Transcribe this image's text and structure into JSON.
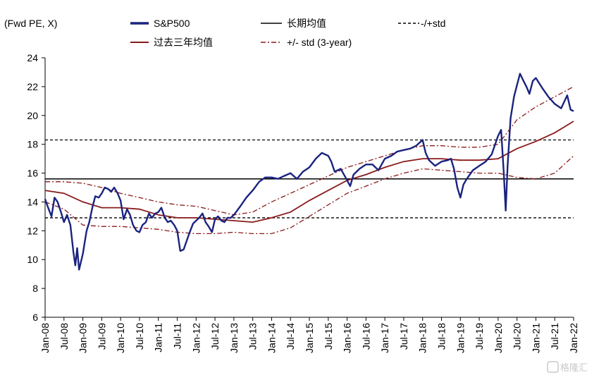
{
  "chart_data": {
    "type": "line",
    "ylabel": "(Fwd PE, X)",
    "ylim": [
      6,
      24
    ],
    "yticks": [
      6,
      8,
      10,
      12,
      14,
      16,
      18,
      20,
      22,
      24
    ],
    "xticks": [
      "Jan-08",
      "Jul-08",
      "Jan-09",
      "Jul-09",
      "Jan-10",
      "Jul-10",
      "Jan-11",
      "Jul-11",
      "Jan-12",
      "Jul-12",
      "Jan-13",
      "Jul-13",
      "Jan-14",
      "Jul-14",
      "Jan-15",
      "Jul-15",
      "Jan-16",
      "Jul-16",
      "Jan-17",
      "Jul-17",
      "Jan-18",
      "Jul-18",
      "Jan-19",
      "Jul-19",
      "Jan-20",
      "Jul-20",
      "Jan-21",
      "Jul-21",
      "Jan-22"
    ],
    "xlim": [
      2008.0,
      2022.0
    ],
    "grid": false,
    "legend_position": "top",
    "legend": [
      {
        "label": "S&P500",
        "key": "sp500"
      },
      {
        "label": "长期均值",
        "key": "long_mean"
      },
      {
        "label": "-/+std",
        "key": "std"
      },
      {
        "label": "过去三年均值",
        "key": "mean3"
      },
      {
        "label": "+/- std (3-year)",
        "key": "std3"
      }
    ],
    "constants": {
      "long_mean": 15.6,
      "std_upper": 18.3,
      "std_lower": 12.9
    },
    "series": [
      {
        "key": "sp500",
        "name": "S&P500",
        "color": "#1a237e",
        "x": [
          2008.0,
          2008.08,
          2008.17,
          2008.25,
          2008.33,
          2008.42,
          2008.5,
          2008.58,
          2008.67,
          2008.75,
          2008.8,
          2008.85,
          2008.9,
          2009.0,
          2009.05,
          2009.1,
          2009.17,
          2009.25,
          2009.33,
          2009.42,
          2009.5,
          2009.58,
          2009.67,
          2009.75,
          2009.83,
          2009.92,
          2010.0,
          2010.08,
          2010.17,
          2010.25,
          2010.33,
          2010.42,
          2010.5,
          2010.58,
          2010.67,
          2010.75,
          2010.83,
          2010.92,
          2011.0,
          2011.08,
          2011.17,
          2011.25,
          2011.33,
          2011.42,
          2011.5,
          2011.58,
          2011.67,
          2011.75,
          2011.83,
          2011.92,
          2012.0,
          2012.08,
          2012.17,
          2012.25,
          2012.33,
          2012.42,
          2012.5,
          2012.58,
          2012.67,
          2012.75,
          2012.83,
          2012.92,
          2013.0,
          2013.17,
          2013.33,
          2013.5,
          2013.67,
          2013.83,
          2014.0,
          2014.17,
          2014.33,
          2014.5,
          2014.67,
          2014.83,
          2015.0,
          2015.17,
          2015.33,
          2015.5,
          2015.58,
          2015.67,
          2015.83,
          2016.0,
          2016.08,
          2016.17,
          2016.33,
          2016.5,
          2016.67,
          2016.83,
          2017.0,
          2017.17,
          2017.33,
          2017.5,
          2017.67,
          2017.83,
          2018.0,
          2018.08,
          2018.17,
          2018.33,
          2018.5,
          2018.67,
          2018.75,
          2018.83,
          2018.92,
          2019.0,
          2019.08,
          2019.17,
          2019.33,
          2019.5,
          2019.67,
          2019.83,
          2020.0,
          2020.08,
          2020.15,
          2020.2,
          2020.25,
          2020.33,
          2020.42,
          2020.5,
          2020.58,
          2020.67,
          2020.75,
          2020.83,
          2020.92,
          2021.0,
          2021.17,
          2021.33,
          2021.5,
          2021.67,
          2021.83,
          2021.92,
          2022.0
        ],
        "y": [
          14.2,
          13.6,
          13.0,
          14.3,
          14.0,
          13.3,
          12.6,
          13.1,
          12.4,
          10.5,
          9.6,
          10.8,
          9.3,
          10.4,
          11.2,
          12.0,
          12.6,
          13.6,
          14.4,
          14.3,
          14.6,
          15.0,
          14.9,
          14.7,
          15.0,
          14.6,
          14.1,
          12.8,
          13.5,
          13.1,
          12.4,
          12.0,
          11.9,
          12.4,
          12.6,
          13.2,
          12.9,
          13.2,
          13.3,
          13.6,
          12.9,
          12.6,
          12.7,
          12.4,
          12.0,
          10.6,
          10.7,
          11.3,
          11.9,
          12.5,
          12.7,
          12.9,
          13.2,
          12.6,
          12.3,
          11.9,
          12.8,
          13.0,
          12.7,
          12.6,
          12.9,
          12.9,
          13.1,
          13.7,
          14.3,
          14.8,
          15.4,
          15.7,
          15.7,
          15.6,
          15.8,
          16.0,
          15.6,
          16.1,
          16.4,
          17.0,
          17.4,
          17.2,
          16.8,
          16.1,
          16.3,
          15.5,
          15.1,
          15.9,
          16.3,
          16.6,
          16.6,
          16.2,
          17.0,
          17.2,
          17.5,
          17.6,
          17.7,
          17.9,
          18.3,
          17.4,
          16.9,
          16.5,
          16.8,
          16.9,
          17.0,
          16.3,
          15.0,
          14.3,
          15.2,
          15.6,
          16.2,
          16.5,
          16.8,
          17.3,
          18.6,
          19.0,
          16.0,
          13.4,
          16.5,
          19.8,
          21.3,
          22.1,
          22.9,
          22.4,
          22.0,
          21.5,
          22.4,
          22.6,
          21.9,
          21.3,
          20.8,
          20.5,
          21.4,
          20.4,
          20.3
        ]
      },
      {
        "key": "mean3",
        "name": "过去三年均值",
        "color": "#8b1a1a",
        "x": [
          2008.0,
          2008.5,
          2009.0,
          2009.5,
          2010.0,
          2010.5,
          2011.0,
          2011.5,
          2012.0,
          2012.5,
          2013.0,
          2013.5,
          2014.0,
          2014.5,
          2015.0,
          2015.5,
          2016.0,
          2016.5,
          2017.0,
          2017.5,
          2018.0,
          2018.5,
          2019.0,
          2019.5,
          2020.0,
          2020.5,
          2021.0,
          2021.5,
          2022.0
        ],
        "y": [
          14.8,
          14.6,
          14.0,
          13.6,
          13.6,
          13.5,
          13.1,
          12.9,
          12.9,
          12.8,
          12.7,
          12.6,
          12.9,
          13.3,
          14.1,
          14.8,
          15.5,
          15.9,
          16.4,
          16.8,
          17.0,
          17.0,
          16.9,
          16.9,
          17.0,
          17.7,
          18.2,
          18.8,
          19.6
        ]
      }
    ],
    "bands": [
      {
        "key": "std3_upper",
        "name": "+/- std (3-year)",
        "color": "#8b1a1a",
        "x": [
          2008.0,
          2008.5,
          2009.0,
          2009.5,
          2010.0,
          2010.5,
          2011.0,
          2011.5,
          2012.0,
          2012.5,
          2013.0,
          2013.5,
          2014.0,
          2014.5,
          2015.0,
          2015.5,
          2016.0,
          2016.5,
          2017.0,
          2017.5,
          2018.0,
          2018.5,
          2019.0,
          2019.5,
          2020.0,
          2020.5,
          2021.0,
          2021.5,
          2022.0
        ],
        "y": [
          15.4,
          15.4,
          15.3,
          15.0,
          14.6,
          14.3,
          14.0,
          13.8,
          13.7,
          13.4,
          13.1,
          13.3,
          14.0,
          14.6,
          15.2,
          15.8,
          16.4,
          16.8,
          17.2,
          17.6,
          17.9,
          17.9,
          17.8,
          17.8,
          18.0,
          19.7,
          20.6,
          21.3,
          22.0
        ]
      },
      {
        "key": "std3_lower",
        "name": "+/- std (3-year)",
        "color": "#8b1a1a",
        "x": [
          2008.0,
          2008.5,
          2009.0,
          2009.5,
          2010.0,
          2010.5,
          2011.0,
          2011.5,
          2012.0,
          2012.5,
          2013.0,
          2013.5,
          2014.0,
          2014.5,
          2015.0,
          2015.5,
          2016.0,
          2016.5,
          2017.0,
          2017.5,
          2018.0,
          2018.5,
          2019.0,
          2019.5,
          2020.0,
          2020.5,
          2021.0,
          2021.5,
          2022.0
        ],
        "y": [
          14.0,
          13.5,
          12.4,
          12.3,
          12.3,
          12.2,
          12.1,
          11.9,
          11.8,
          11.8,
          11.9,
          11.8,
          11.8,
          12.2,
          13.0,
          13.8,
          14.6,
          15.1,
          15.6,
          16.0,
          16.3,
          16.2,
          16.1,
          16.0,
          16.0,
          15.7,
          15.6,
          16.0,
          17.2
        ]
      }
    ]
  },
  "watermark": "格隆汇"
}
